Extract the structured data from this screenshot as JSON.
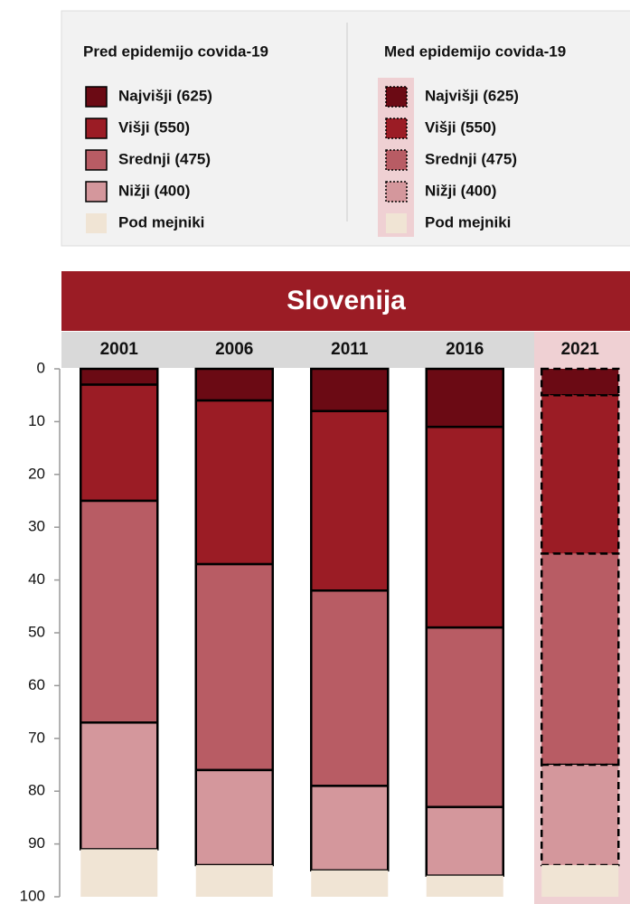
{
  "chart_data": {
    "type": "stacked_bar",
    "title": "Slovenija",
    "legend_groups": [
      "Pred epidemijo covida-19",
      "Med epidemijo covida-19"
    ],
    "categories": [
      "2001",
      "2006",
      "2011",
      "2016",
      "2021"
    ],
    "styles": [
      "solid",
      "solid",
      "solid",
      "solid",
      "dashed"
    ],
    "series": [
      {
        "name": "Najvišji (625)",
        "color": "#6b0a14",
        "values": [
          3,
          6,
          8,
          11,
          5
        ]
      },
      {
        "name": "Višji (550)",
        "color": "#9b1c25",
        "values": [
          22,
          31,
          34,
          38,
          30
        ]
      },
      {
        "name": "Srednji (475)",
        "color": "#b85c64",
        "values": [
          42,
          39,
          37,
          34,
          40
        ]
      },
      {
        "name": "Nižji (400)",
        "color": "#d4979c",
        "values": [
          24,
          18,
          16,
          13,
          19
        ]
      },
      {
        "name": "Pod mejniki",
        "color": "#f0e4d4",
        "values": [
          9,
          6,
          5,
          4,
          6
        ]
      }
    ],
    "ylim": [
      0,
      100
    ],
    "yticks": [
      0,
      10,
      20,
      30,
      40,
      50,
      60,
      70,
      80,
      90,
      100
    ],
    "y_inverted": true
  }
}
